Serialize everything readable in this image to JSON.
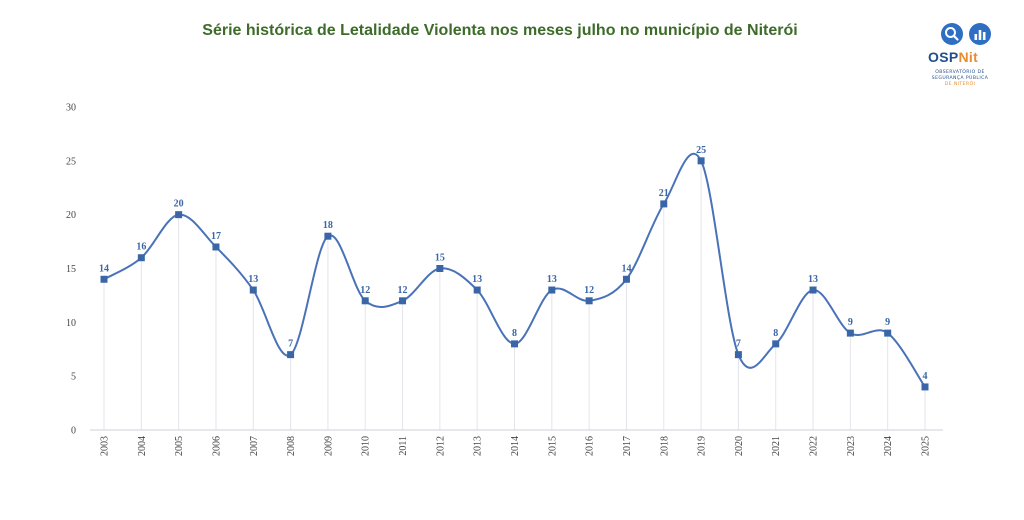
{
  "title": "Série histórica de Letalidade Violenta nos meses julho no município de Niterói",
  "logo": {
    "brand_part1": "OSP",
    "brand_part2": "Nit",
    "line1": "OBSERVATÓRIO DE",
    "line2": "SEGURANÇA PÚBLICA",
    "line3": "DE NITERÓI",
    "icons": [
      "search-icon",
      "bar-chart-icon"
    ]
  },
  "colors": {
    "title": "#3d6b2a",
    "line": "#4a72b8",
    "marker": "#3a66a7",
    "label": "#3a66a7",
    "grid": "#e4e4ec",
    "logo_blue": "#1f4e8c",
    "logo_orange": "#e98c2f"
  },
  "chart_data": {
    "type": "line",
    "categories": [
      "2003",
      "2004",
      "2005",
      "2006",
      "2007",
      "2008",
      "2009",
      "2010",
      "2011",
      "2012",
      "2013",
      "2014",
      "2015",
      "2016",
      "2017",
      "2018",
      "2019",
      "2020",
      "2021",
      "2022",
      "2023",
      "2024",
      "2025"
    ],
    "series": [
      {
        "values": [
          14,
          16,
          20,
          17,
          13,
          7,
          18,
          12,
          12,
          15,
          13,
          8,
          13,
          12,
          14,
          21,
          25,
          7,
          8,
          13,
          9,
          9,
          4
        ]
      }
    ],
    "ylim": [
      0,
      30
    ],
    "yticks": [
      0,
      5,
      10,
      15,
      20,
      25,
      30
    ],
    "data_labels": true,
    "smooth": true,
    "vertical_gridlines": true,
    "x_tick_rotation": "vertical"
  }
}
